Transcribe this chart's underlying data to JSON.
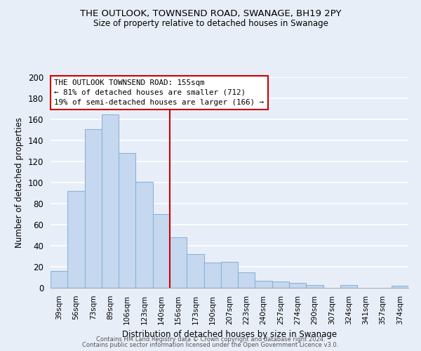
{
  "title1": "THE OUTLOOK, TOWNSEND ROAD, SWANAGE, BH19 2PY",
  "title2": "Size of property relative to detached houses in Swanage",
  "xlabel": "Distribution of detached houses by size in Swanage",
  "ylabel": "Number of detached properties",
  "bar_labels": [
    "39sqm",
    "56sqm",
    "73sqm",
    "89sqm",
    "106sqm",
    "123sqm",
    "140sqm",
    "156sqm",
    "173sqm",
    "190sqm",
    "207sqm",
    "223sqm",
    "240sqm",
    "257sqm",
    "274sqm",
    "290sqm",
    "307sqm",
    "324sqm",
    "341sqm",
    "357sqm",
    "374sqm"
  ],
  "bar_values": [
    16,
    92,
    151,
    165,
    128,
    101,
    70,
    48,
    32,
    24,
    25,
    15,
    7,
    6,
    5,
    3,
    0,
    3,
    0,
    0,
    2
  ],
  "bar_color": "#c5d8f0",
  "bar_edgecolor": "#8ab4d8",
  "vline_index": 7,
  "vline_color": "#cc0000",
  "ylim": [
    0,
    200
  ],
  "yticks": [
    0,
    20,
    40,
    60,
    80,
    100,
    120,
    140,
    160,
    180,
    200
  ],
  "annotation_title": "THE OUTLOOK TOWNSEND ROAD: 155sqm",
  "annotation_line1": "← 81% of detached houses are smaller (712)",
  "annotation_line2": "19% of semi-detached houses are larger (166) →",
  "footer1": "Contains HM Land Registry data © Crown copyright and database right 2024.",
  "footer2": "Contains public sector information licensed under the Open Government Licence v3.0.",
  "bg_color": "#e8eef8",
  "grid_color": "#ffffff"
}
